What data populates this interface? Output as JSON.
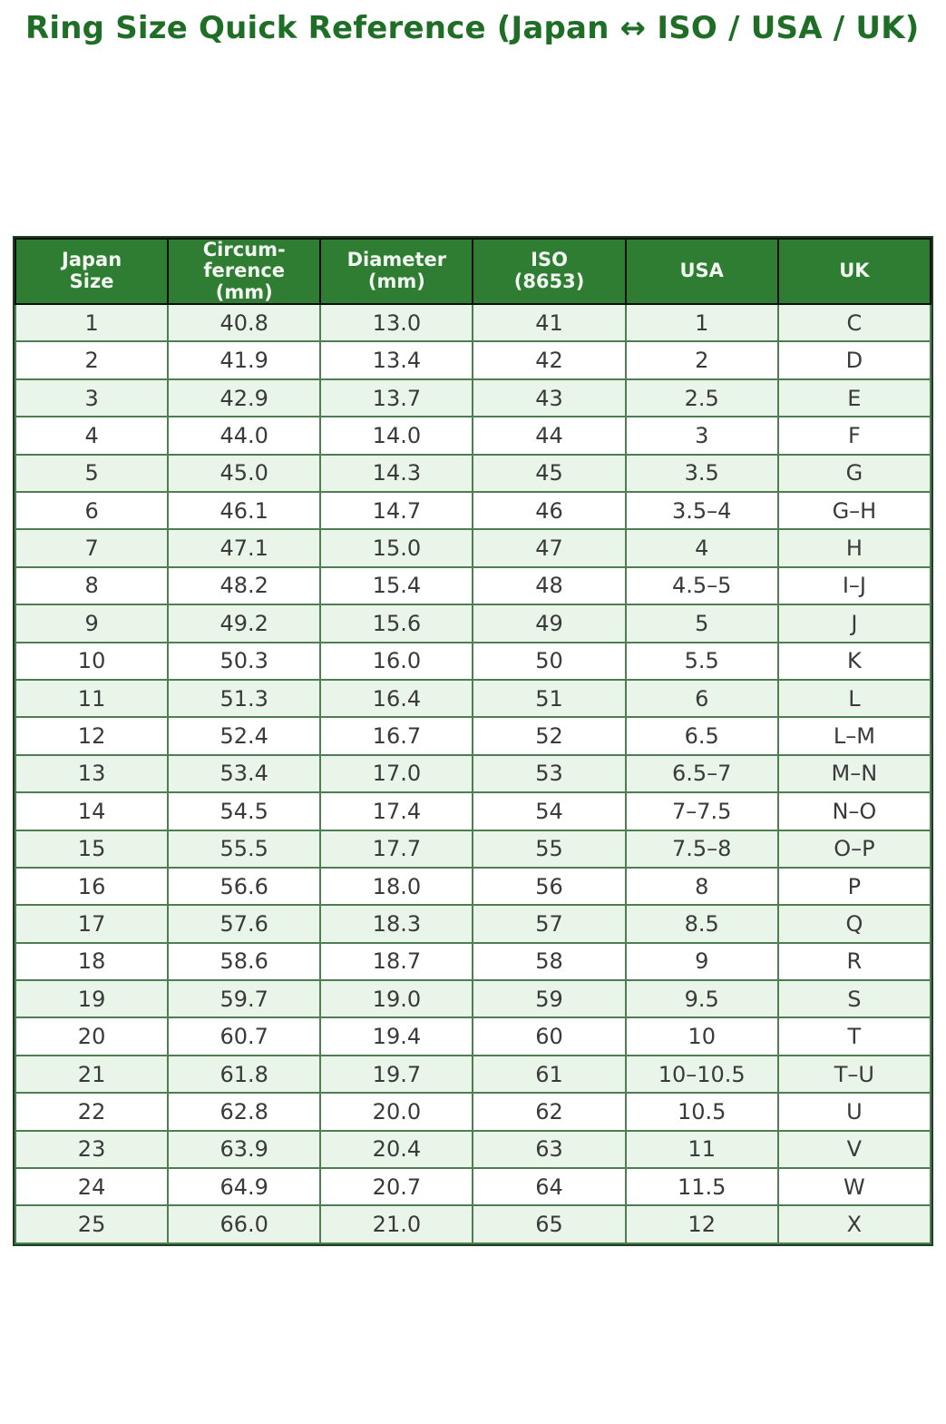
{
  "page": {
    "title": "Ring Size Quick Reference (Japan ↔ ISO / USA / UK)"
  },
  "colors": {
    "title_green": "#1e6e26",
    "header_bg": "#2e7d32",
    "header_text": "#f3f7f2",
    "header_border": "#0d0d0d",
    "outer_border": "#1d3f21",
    "body_border": "#4e7d52",
    "row_alt_bg": "#e9f5e9",
    "row_bg": "#ffffff",
    "body_text": "#3a3a3a",
    "page_bg": "#ffffff"
  },
  "chart_data": {
    "type": "table",
    "title": "Ring Size Quick Reference (Japan ↔ ISO / USA / UK)",
    "columns": [
      "Japan\nSize",
      "Circum-\nference\n(mm)",
      "Diameter\n(mm)",
      "ISO\n(8653)",
      "USA",
      "UK"
    ],
    "rows": [
      [
        "1",
        "40.8",
        "13.0",
        "41",
        "1",
        "C"
      ],
      [
        "2",
        "41.9",
        "13.4",
        "42",
        "2",
        "D"
      ],
      [
        "3",
        "42.9",
        "13.7",
        "43",
        "2.5",
        "E"
      ],
      [
        "4",
        "44.0",
        "14.0",
        "44",
        "3",
        "F"
      ],
      [
        "5",
        "45.0",
        "14.3",
        "45",
        "3.5",
        "G"
      ],
      [
        "6",
        "46.1",
        "14.7",
        "46",
        "3.5–4",
        "G–H"
      ],
      [
        "7",
        "47.1",
        "15.0",
        "47",
        "4",
        "H"
      ],
      [
        "8",
        "48.2",
        "15.4",
        "48",
        "4.5–5",
        "I–J"
      ],
      [
        "9",
        "49.2",
        "15.6",
        "49",
        "5",
        "J"
      ],
      [
        "10",
        "50.3",
        "16.0",
        "50",
        "5.5",
        "K"
      ],
      [
        "11",
        "51.3",
        "16.4",
        "51",
        "6",
        "L"
      ],
      [
        "12",
        "52.4",
        "16.7",
        "52",
        "6.5",
        "L–M"
      ],
      [
        "13",
        "53.4",
        "17.0",
        "53",
        "6.5–7",
        "M–N"
      ],
      [
        "14",
        "54.5",
        "17.4",
        "54",
        "7–7.5",
        "N–O"
      ],
      [
        "15",
        "55.5",
        "17.7",
        "55",
        "7.5–8",
        "O–P"
      ],
      [
        "16",
        "56.6",
        "18.0",
        "56",
        "8",
        "P"
      ],
      [
        "17",
        "57.6",
        "18.3",
        "57",
        "8.5",
        "Q"
      ],
      [
        "18",
        "58.6",
        "18.7",
        "58",
        "9",
        "R"
      ],
      [
        "19",
        "59.7",
        "19.0",
        "59",
        "9.5",
        "S"
      ],
      [
        "20",
        "60.7",
        "19.4",
        "60",
        "10",
        "T"
      ],
      [
        "21",
        "61.8",
        "19.7",
        "61",
        "10–10.5",
        "T–U"
      ],
      [
        "22",
        "62.8",
        "20.0",
        "62",
        "10.5",
        "U"
      ],
      [
        "23",
        "63.9",
        "20.4",
        "63",
        "11",
        "V"
      ],
      [
        "24",
        "64.9",
        "20.7",
        "64",
        "11.5",
        "W"
      ],
      [
        "25",
        "66.0",
        "21.0",
        "65",
        "12",
        "X"
      ]
    ],
    "layout": {
      "header_rows": 1,
      "alternating_row_shading": true,
      "text_align": "center"
    }
  }
}
